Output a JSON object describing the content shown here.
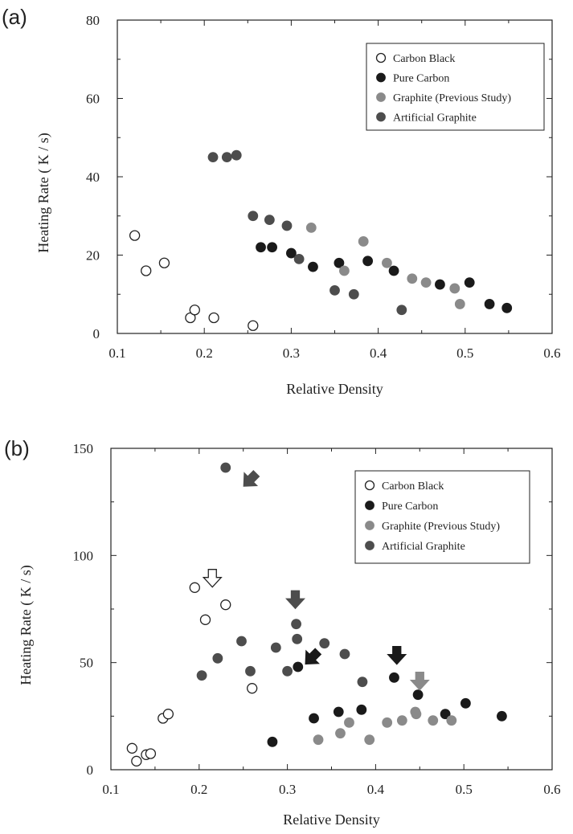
{
  "chart_data": [
    {
      "panel": "(a)",
      "type": "scatter",
      "xlabel": "Relative Density",
      "ylabel": "Heating Rate ( K / s)",
      "xlim": [
        0.1,
        0.6
      ],
      "ylim": [
        0,
        80
      ],
      "xticks": [
        "0.1",
        "0.2",
        "0.3",
        "0.4",
        "0.5",
        "0.6"
      ],
      "yticks": [
        "0",
        "20",
        "40",
        "60",
        "80"
      ],
      "grid": false,
      "legend_position": "top-right",
      "series": [
        {
          "name": "Carbon Black",
          "color": "#ffffff",
          "stroke": "#222222",
          "points": [
            [
              0.12,
              25
            ],
            [
              0.133,
              16
            ],
            [
              0.154,
              18
            ],
            [
              0.184,
              4
            ],
            [
              0.189,
              6
            ],
            [
              0.211,
              4
            ],
            [
              0.256,
              2
            ]
          ]
        },
        {
          "name": "Pure Carbon",
          "color": "#1a1a1a",
          "points": [
            [
              0.265,
              22
            ],
            [
              0.278,
              22
            ],
            [
              0.3,
              20.5
            ],
            [
              0.325,
              17
            ],
            [
              0.355,
              18
            ],
            [
              0.388,
              18.5
            ],
            [
              0.418,
              16
            ],
            [
              0.471,
              12.5
            ],
            [
              0.505,
              13
            ],
            [
              0.528,
              7.5
            ],
            [
              0.548,
              6.5
            ]
          ]
        },
        {
          "name": "Graphite (Previous Study)",
          "color": "#8a8a8a",
          "points": [
            [
              0.323,
              27
            ],
            [
              0.361,
              16
            ],
            [
              0.383,
              23.5
            ],
            [
              0.41,
              18
            ],
            [
              0.439,
              14
            ],
            [
              0.455,
              13
            ],
            [
              0.488,
              11.5
            ],
            [
              0.494,
              7.5
            ]
          ]
        },
        {
          "name": "Artificial Graphite",
          "color": "#4d4d4d",
          "points": [
            [
              0.21,
              45
            ],
            [
              0.226,
              45
            ],
            [
              0.237,
              45.5
            ],
            [
              0.256,
              30
            ],
            [
              0.275,
              29
            ],
            [
              0.295,
              27.5
            ],
            [
              0.309,
              19
            ],
            [
              0.35,
              11
            ],
            [
              0.372,
              10
            ],
            [
              0.427,
              6
            ]
          ]
        }
      ]
    },
    {
      "panel": "(b)",
      "type": "scatter",
      "xlabel": "Relative Density",
      "ylabel": "Heating Rate ( K / s)",
      "xlim": [
        0.1,
        0.6
      ],
      "ylim": [
        0,
        150
      ],
      "xticks": [
        "0.1",
        "0.2",
        "0.3",
        "0.4",
        "0.5",
        "0.6"
      ],
      "yticks": [
        "0",
        "50",
        "100",
        "150"
      ],
      "grid": false,
      "legend_position": "top-right",
      "series": [
        {
          "name": "Carbon Black",
          "color": "#ffffff",
          "stroke": "#222222",
          "points": [
            [
              0.124,
              10
            ],
            [
              0.129,
              4
            ],
            [
              0.14,
              7
            ],
            [
              0.145,
              7.5
            ],
            [
              0.159,
              24
            ],
            [
              0.165,
              26
            ],
            [
              0.195,
              85
            ],
            [
              0.207,
              70
            ],
            [
              0.23,
              77
            ],
            [
              0.26,
              38
            ]
          ]
        },
        {
          "name": "Pure Carbon",
          "color": "#1a1a1a",
          "points": [
            [
              0.283,
              13
            ],
            [
              0.312,
              48
            ],
            [
              0.33,
              24
            ],
            [
              0.358,
              27
            ],
            [
              0.384,
              28
            ],
            [
              0.421,
              43
            ],
            [
              0.448,
              35
            ],
            [
              0.479,
              26
            ],
            [
              0.502,
              31
            ],
            [
              0.543,
              25
            ]
          ]
        },
        {
          "name": "Graphite (Previous Study)",
          "color": "#8a8a8a",
          "points": [
            [
              0.335,
              14
            ],
            [
              0.36,
              17
            ],
            [
              0.37,
              22
            ],
            [
              0.393,
              14
            ],
            [
              0.413,
              22
            ],
            [
              0.43,
              23
            ],
            [
              0.445,
              27
            ],
            [
              0.446,
              26
            ],
            [
              0.465,
              23
            ],
            [
              0.486,
              23
            ]
          ]
        },
        {
          "name": "Artificial Graphite",
          "color": "#4d4d4d",
          "points": [
            [
              0.203,
              44
            ],
            [
              0.221,
              52
            ],
            [
              0.23,
              141
            ],
            [
              0.248,
              60
            ],
            [
              0.258,
              46
            ],
            [
              0.287,
              57
            ],
            [
              0.3,
              46
            ],
            [
              0.31,
              68
            ],
            [
              0.311,
              61
            ],
            [
              0.342,
              59
            ],
            [
              0.365,
              54
            ],
            [
              0.385,
              41
            ]
          ]
        }
      ],
      "annotations": [
        {
          "kind": "arrow",
          "direction": "down-left",
          "color": "#4d4d4d",
          "x": 0.257,
          "y": 135
        },
        {
          "kind": "arrow",
          "direction": "down",
          "color": "#ffffff",
          "x": 0.215,
          "y": 89
        },
        {
          "kind": "arrow",
          "direction": "down",
          "color": "#4d4d4d",
          "x": 0.309,
          "y": 79
        },
        {
          "kind": "arrow",
          "direction": "down-left",
          "color": "#1a1a1a",
          "x": 0.327,
          "y": 52
        },
        {
          "kind": "arrow",
          "direction": "down",
          "color": "#1a1a1a",
          "x": 0.424,
          "y": 53
        },
        {
          "kind": "arrow",
          "direction": "down",
          "color": "#8a8a8a",
          "x": 0.45,
          "y": 41
        }
      ]
    }
  ]
}
